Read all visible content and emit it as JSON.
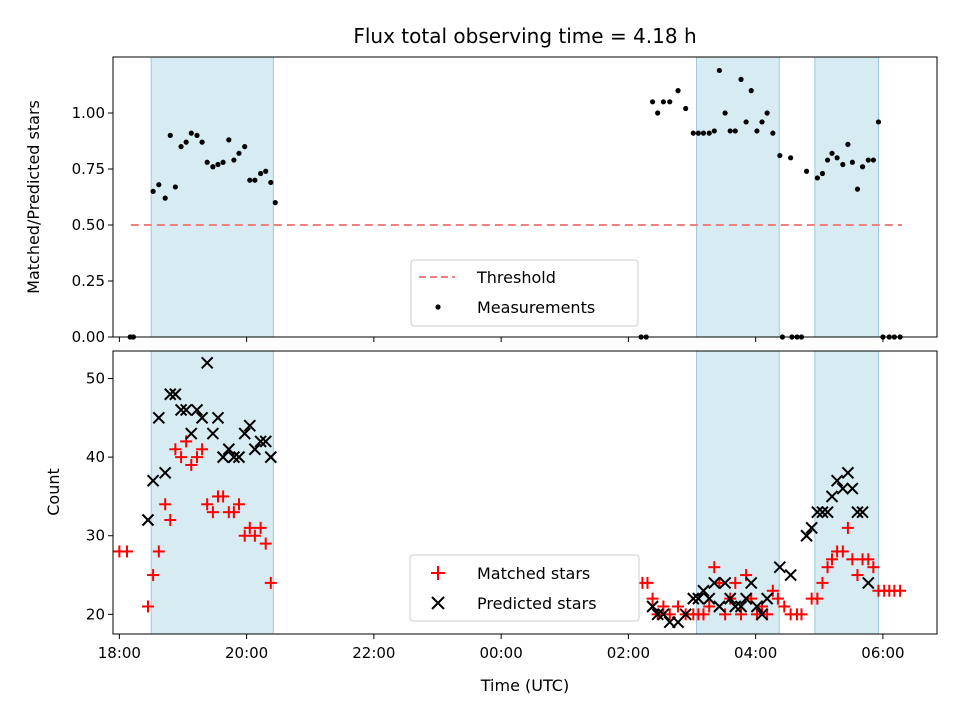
{
  "chart_data": [
    {
      "type": "scatter",
      "title": "Flux total observing time = 4.18 h",
      "xlabel": "",
      "ylabel": "Matched/Predicted stars",
      "xlim": [
        -6.1,
        6.85
      ],
      "ylim": [
        0,
        1.25
      ],
      "yticks": [
        0,
        0.25,
        0.5,
        0.75,
        1.0
      ],
      "ytick_labels": [
        "0.00",
        "0.25",
        "0.50",
        "0.75",
        "1.00"
      ],
      "legend": {
        "placement": "lower-center",
        "entries": [
          {
            "label": "Threshold",
            "marker": "dashed-line",
            "color": "#f08080"
          },
          {
            "label": "Measurements",
            "marker": "dot",
            "color": "#000000"
          }
        ]
      },
      "threshold": {
        "name": "Threshold",
        "value": 0.5,
        "x_range": [
          -5.82,
          6.3
        ],
        "color": "#f08080"
      },
      "shaded_intervals": [
        [
          -5.5,
          -3.58
        ],
        [
          3.07,
          4.37
        ],
        [
          4.93,
          5.93
        ]
      ],
      "series": [
        {
          "name": "Measurements",
          "color": "#000000",
          "points": [
            [
              -5.83,
              0.0
            ],
            [
              -5.78,
              0.0
            ],
            [
              -5.47,
              0.65
            ],
            [
              -5.38,
              0.68
            ],
            [
              -5.28,
              0.62
            ],
            [
              -5.2,
              0.9
            ],
            [
              -5.12,
              0.67
            ],
            [
              -5.03,
              0.85
            ],
            [
              -4.95,
              0.87
            ],
            [
              -4.87,
              0.91
            ],
            [
              -4.78,
              0.9
            ],
            [
              -4.7,
              0.87
            ],
            [
              -4.62,
              0.78
            ],
            [
              -4.53,
              0.76
            ],
            [
              -4.45,
              0.77
            ],
            [
              -4.37,
              0.78
            ],
            [
              -4.28,
              0.88
            ],
            [
              -4.2,
              0.79
            ],
            [
              -4.12,
              0.82
            ],
            [
              -4.03,
              0.85
            ],
            [
              -3.95,
              0.7
            ],
            [
              -3.87,
              0.7
            ],
            [
              -3.78,
              0.73
            ],
            [
              -3.7,
              0.74
            ],
            [
              -3.62,
              0.69
            ],
            [
              -3.55,
              0.6
            ],
            [
              2.2,
              0.0
            ],
            [
              2.28,
              0.0
            ],
            [
              2.38,
              1.05
            ],
            [
              2.46,
              1.0
            ],
            [
              2.55,
              1.05
            ],
            [
              2.65,
              1.05
            ],
            [
              2.78,
              1.1
            ],
            [
              2.9,
              1.02
            ],
            [
              3.02,
              0.91
            ],
            [
              3.1,
              0.91
            ],
            [
              3.18,
              0.91
            ],
            [
              3.27,
              0.91
            ],
            [
              3.35,
              0.92
            ],
            [
              3.43,
              1.19
            ],
            [
              3.52,
              1.0
            ],
            [
              3.6,
              0.92
            ],
            [
              3.68,
              0.92
            ],
            [
              3.77,
              1.15
            ],
            [
              3.85,
              0.96
            ],
            [
              3.93,
              1.1
            ],
            [
              4.02,
              0.92
            ],
            [
              4.1,
              0.96
            ],
            [
              4.18,
              1.0
            ],
            [
              4.27,
              0.91
            ],
            [
              4.38,
              0.81
            ],
            [
              4.42,
              0.0
            ],
            [
              4.55,
              0.8
            ],
            [
              4.57,
              0.0
            ],
            [
              4.65,
              0.0
            ],
            [
              4.72,
              0.0
            ],
            [
              4.8,
              0.74
            ],
            [
              4.97,
              0.71
            ],
            [
              5.05,
              0.73
            ],
            [
              5.13,
              0.79
            ],
            [
              5.2,
              0.82
            ],
            [
              5.28,
              0.8
            ],
            [
              5.37,
              0.77
            ],
            [
              5.45,
              0.86
            ],
            [
              5.52,
              0.78
            ],
            [
              5.6,
              0.66
            ],
            [
              5.68,
              0.76
            ],
            [
              5.77,
              0.79
            ],
            [
              5.85,
              0.79
            ],
            [
              5.93,
              0.96
            ],
            [
              6.0,
              0.0
            ],
            [
              6.1,
              0.0
            ],
            [
              6.18,
              0.0
            ],
            [
              6.27,
              0.0
            ]
          ]
        }
      ]
    },
    {
      "type": "scatter",
      "title": "",
      "xlabel": "Time (UTC)",
      "ylabel": "Count",
      "xlim": [
        -6.1,
        6.85
      ],
      "ylim": [
        17.5,
        53.5
      ],
      "yticks": [
        20,
        30,
        40,
        50
      ],
      "ytick_labels": [
        "20",
        "30",
        "40",
        "50"
      ],
      "xticks": [
        -6,
        -4,
        -2,
        0,
        2,
        4,
        6
      ],
      "xtick_labels": [
        "18:00",
        "20:00",
        "22:00",
        "00:00",
        "02:00",
        "04:00",
        "06:00"
      ],
      "legend": {
        "placement": "lower-center",
        "entries": [
          {
            "label": "Matched stars",
            "marker": "plus",
            "color": "#ff0000"
          },
          {
            "label": "Predicted stars",
            "marker": "x",
            "color": "#000000"
          }
        ]
      },
      "shaded_intervals": [
        [
          -5.5,
          -3.58
        ],
        [
          3.07,
          4.37
        ],
        [
          4.93,
          5.93
        ]
      ],
      "series": [
        {
          "name": "Matched stars",
          "marker": "plus",
          "color": "#ff0000",
          "points": [
            [
              -6.0,
              28
            ],
            [
              -5.88,
              28
            ],
            [
              -5.55,
              21
            ],
            [
              -5.47,
              25
            ],
            [
              -5.38,
              28
            ],
            [
              -5.28,
              34
            ],
            [
              -5.2,
              32
            ],
            [
              -5.12,
              41
            ],
            [
              -5.03,
              40
            ],
            [
              -4.95,
              42
            ],
            [
              -4.87,
              39
            ],
            [
              -4.78,
              40
            ],
            [
              -4.7,
              41
            ],
            [
              -4.62,
              34
            ],
            [
              -4.53,
              33
            ],
            [
              -4.45,
              35
            ],
            [
              -4.37,
              35
            ],
            [
              -4.28,
              33
            ],
            [
              -4.2,
              33
            ],
            [
              -4.12,
              34
            ],
            [
              -4.03,
              30
            ],
            [
              -3.95,
              31
            ],
            [
              -3.87,
              30
            ],
            [
              -3.78,
              31
            ],
            [
              -3.7,
              29
            ],
            [
              -3.62,
              24
            ],
            [
              2.22,
              24
            ],
            [
              2.3,
              24
            ],
            [
              2.38,
              22
            ],
            [
              2.46,
              20
            ],
            [
              2.55,
              21
            ],
            [
              2.65,
              20
            ],
            [
              2.78,
              21
            ],
            [
              2.9,
              20
            ],
            [
              3.02,
              20
            ],
            [
              3.1,
              20
            ],
            [
              3.18,
              20
            ],
            [
              3.27,
              21
            ],
            [
              3.35,
              26
            ],
            [
              3.43,
              24
            ],
            [
              3.52,
              20
            ],
            [
              3.6,
              22
            ],
            [
              3.68,
              24
            ],
            [
              3.77,
              20
            ],
            [
              3.85,
              25
            ],
            [
              3.93,
              22
            ],
            [
              4.02,
              20
            ],
            [
              4.1,
              21
            ],
            [
              4.18,
              20
            ],
            [
              4.27,
              23
            ],
            [
              4.35,
              22
            ],
            [
              4.45,
              21
            ],
            [
              4.55,
              20
            ],
            [
              4.65,
              20
            ],
            [
              4.72,
              20
            ],
            [
              4.88,
              22
            ],
            [
              4.97,
              22
            ],
            [
              5.05,
              24
            ],
            [
              5.13,
              26
            ],
            [
              5.2,
              27
            ],
            [
              5.28,
              28
            ],
            [
              5.37,
              28
            ],
            [
              5.45,
              31
            ],
            [
              5.52,
              27
            ],
            [
              5.6,
              25
            ],
            [
              5.68,
              27
            ],
            [
              5.77,
              27
            ],
            [
              5.85,
              26
            ],
            [
              5.93,
              23
            ],
            [
              6.02,
              23
            ],
            [
              6.1,
              23
            ],
            [
              6.18,
              23
            ],
            [
              6.27,
              23
            ]
          ]
        },
        {
          "name": "Predicted stars",
          "marker": "x",
          "color": "#000000",
          "points": [
            [
              -5.55,
              32
            ],
            [
              -5.47,
              37
            ],
            [
              -5.38,
              45
            ],
            [
              -5.28,
              38
            ],
            [
              -5.2,
              48
            ],
            [
              -5.12,
              48
            ],
            [
              -5.03,
              46
            ],
            [
              -4.95,
              46
            ],
            [
              -4.87,
              43
            ],
            [
              -4.78,
              46
            ],
            [
              -4.7,
              45
            ],
            [
              -4.62,
              52
            ],
            [
              -4.53,
              43
            ],
            [
              -4.45,
              45
            ],
            [
              -4.37,
              40
            ],
            [
              -4.28,
              41
            ],
            [
              -4.2,
              40
            ],
            [
              -4.12,
              40
            ],
            [
              -4.03,
              43
            ],
            [
              -3.95,
              44
            ],
            [
              -3.87,
              41
            ],
            [
              -3.78,
              42
            ],
            [
              -3.7,
              42
            ],
            [
              -3.62,
              40
            ],
            [
              2.38,
              21
            ],
            [
              2.46,
              20
            ],
            [
              2.55,
              20
            ],
            [
              2.65,
              19
            ],
            [
              2.78,
              19
            ],
            [
              2.9,
              20
            ],
            [
              3.02,
              22
            ],
            [
              3.1,
              22
            ],
            [
              3.18,
              23
            ],
            [
              3.27,
              22
            ],
            [
              3.35,
              24
            ],
            [
              3.43,
              21
            ],
            [
              3.52,
              24
            ],
            [
              3.6,
              22
            ],
            [
              3.68,
              21
            ],
            [
              3.77,
              21
            ],
            [
              3.85,
              22
            ],
            [
              3.93,
              24
            ],
            [
              4.02,
              21
            ],
            [
              4.1,
              20
            ],
            [
              4.18,
              22
            ],
            [
              4.38,
              26
            ],
            [
              4.55,
              25
            ],
            [
              4.8,
              30
            ],
            [
              4.88,
              31
            ],
            [
              4.97,
              33
            ],
            [
              5.05,
              33
            ],
            [
              5.13,
              33
            ],
            [
              5.2,
              35
            ],
            [
              5.28,
              37
            ],
            [
              5.37,
              36
            ],
            [
              5.45,
              38
            ],
            [
              5.52,
              36
            ],
            [
              5.6,
              33
            ],
            [
              5.68,
              33
            ],
            [
              5.77,
              24
            ]
          ]
        }
      ]
    }
  ]
}
